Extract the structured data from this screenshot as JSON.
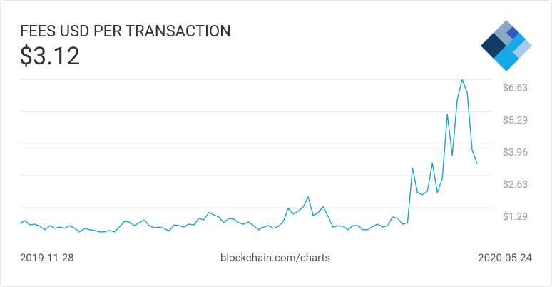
{
  "chart_data": {
    "type": "line",
    "title": "FEES USD PER TRANSACTION",
    "current_value": "$3.12",
    "source": "blockchain.com/charts",
    "categories": [
      "2019-11-28",
      null,
      null,
      null,
      null,
      null,
      null,
      null,
      null,
      null,
      null,
      null,
      null,
      null,
      null,
      null,
      null,
      null,
      null,
      null,
      null,
      null,
      null,
      null,
      null,
      null,
      null,
      null,
      null,
      null,
      null,
      null,
      null,
      null,
      null,
      null,
      null,
      null,
      null,
      null,
      null,
      null,
      null,
      null,
      null,
      null,
      null,
      null,
      null,
      null,
      null,
      null,
      null,
      null,
      null,
      null,
      null,
      null,
      null,
      null,
      null,
      null,
      null,
      null,
      null,
      null,
      null,
      null,
      null,
      null,
      null,
      null,
      null,
      null,
      null,
      null,
      null,
      null,
      null,
      null,
      null,
      null,
      null,
      null,
      null,
      null,
      null,
      null,
      null,
      null,
      null,
      null,
      "2020-05-24"
    ],
    "values": [
      0.65,
      0.77,
      0.59,
      0.62,
      0.53,
      0.39,
      0.56,
      0.45,
      0.5,
      0.45,
      0.56,
      0.45,
      0.3,
      0.45,
      0.39,
      0.36,
      0.3,
      0.3,
      0.36,
      0.3,
      0.5,
      0.74,
      0.71,
      0.56,
      0.68,
      0.8,
      0.56,
      0.47,
      0.5,
      0.45,
      0.33,
      0.59,
      0.56,
      0.5,
      0.62,
      0.59,
      0.86,
      0.8,
      1.1,
      1.01,
      0.92,
      0.68,
      0.86,
      0.83,
      0.68,
      0.62,
      0.71,
      0.56,
      0.39,
      0.5,
      0.56,
      0.45,
      0.53,
      0.74,
      1.28,
      1.04,
      1.16,
      1.34,
      1.75,
      0.98,
      1.1,
      1.34,
      0.95,
      0.5,
      0.56,
      0.53,
      0.39,
      0.56,
      0.56,
      0.39,
      0.39,
      0.53,
      0.62,
      0.5,
      0.56,
      0.92,
      0.86,
      0.62,
      0.68,
      2.94,
      1.93,
      1.84,
      1.99,
      3.15,
      1.93,
      2.52,
      5.19,
      3.47,
      5.79,
      6.62,
      6.08,
      3.71,
      3.12
    ],
    "color": "#1e9fd6",
    "ylim": [
      0,
      6.63
    ],
    "yticks": [
      {
        "value": 1.29,
        "label": "$1.29"
      },
      {
        "value": 2.63,
        "label": "$2.63"
      },
      {
        "value": 3.96,
        "label": "$3.96"
      },
      {
        "value": 5.29,
        "label": "$5.29"
      },
      {
        "value": 6.63,
        "label": "$6.63"
      }
    ],
    "grid": true
  }
}
